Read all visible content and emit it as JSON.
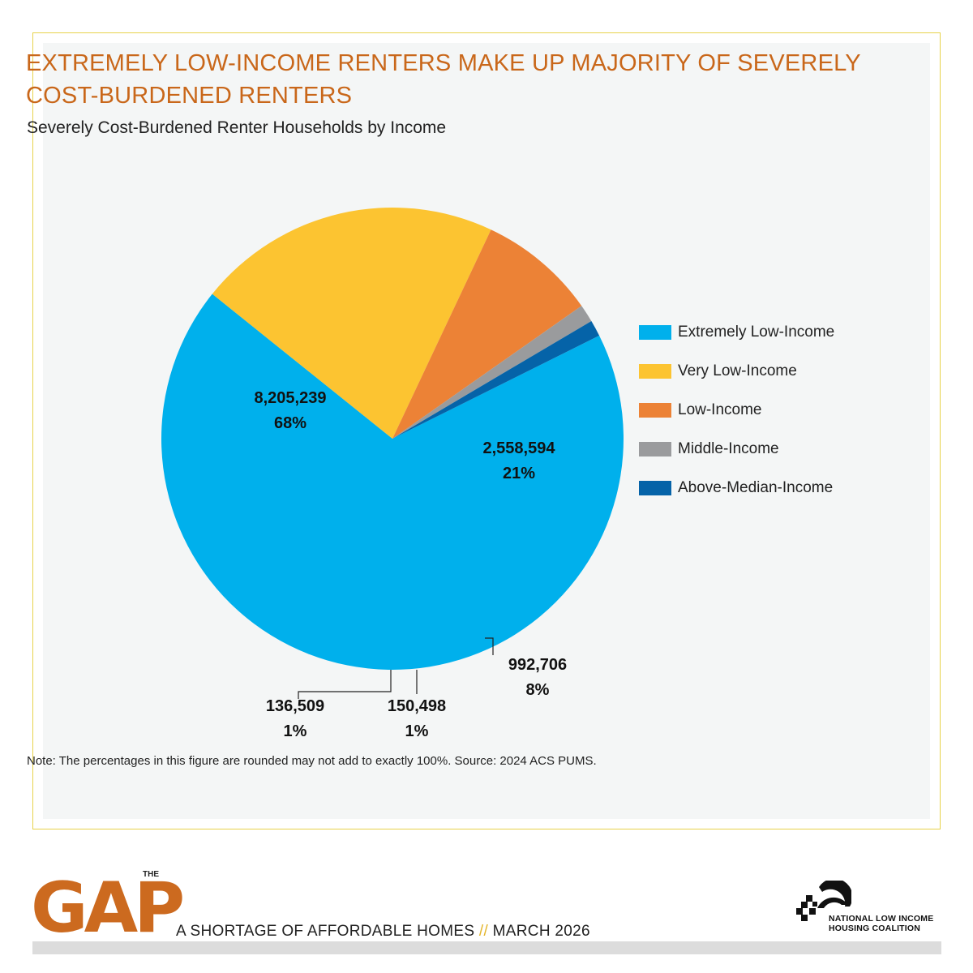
{
  "chart_data": {
    "type": "pie",
    "title": "EXTREMELY LOW-INCOME RENTERS MAKE UP MAJORITY OF SEVERELY COST-BURDENED RENTERS",
    "subtitle": "Severely Cost-Burdened Renter Households by Income",
    "slices": [
      {
        "name": "Extremely Low-Income",
        "value": 8205239,
        "value_label": "8,205,239",
        "percent_label": "68%",
        "color": "#00b0ec"
      },
      {
        "name": "Very Low-Income",
        "value": 2558594,
        "value_label": "2,558,594",
        "percent_label": "21%",
        "color": "#fcc431"
      },
      {
        "name": "Low-Income",
        "value": 992706,
        "value_label": "992,706",
        "percent_label": "8%",
        "color": "#ec8236"
      },
      {
        "name": "Middle-Income",
        "value": 150498,
        "value_label": "150,498",
        "percent_label": "1%",
        "color": "#9a9b9d"
      },
      {
        "name": "Above-Median-Income",
        "value": 136509,
        "value_label": "136,509",
        "percent_label": "1%",
        "color": "#0563a8"
      }
    ],
    "legend_position": "right",
    "note": "Note: The percentages in this figure are rounded may not add to exactly 100%. Source: 2024 ACS PUMS."
  },
  "footer": {
    "logo_text": "GAP",
    "logo_prefix": "THE",
    "tagline_part1": "A SHORTAGE OF AFFORDABLE HOMES",
    "tagline_sep": "//",
    "tagline_part2": "MARCH 2026",
    "org_line1": "NATIONAL LOW INCOME",
    "org_line2": "HOUSING COALITION"
  }
}
